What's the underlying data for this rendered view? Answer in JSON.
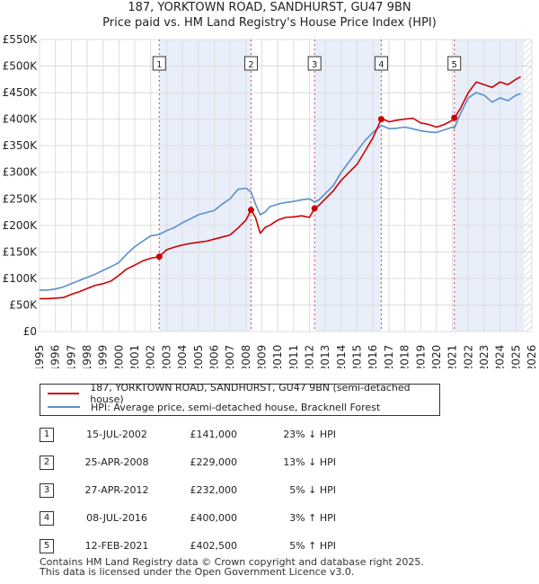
{
  "title_line1": "187, YORKTOWN ROAD, SANDHURST, GU47 9BN",
  "title_line2": "Price paid vs. HM Land Registry's House Price Index (HPI)",
  "legend": {
    "property": "187, YORKTOWN ROAD, SANDHURST, GU47 9BN (semi-detached house)",
    "hpi": "HPI: Average price, semi-detached house, Bracknell Forest"
  },
  "colors": {
    "property": "#cc0000",
    "hpi": "#5b8fc9",
    "shade": "#e8eefa",
    "grid": "#dddddd"
  },
  "sales": [
    {
      "num": "1",
      "date": "15-JUL-2002",
      "price": "£141,000",
      "diff": "23% ↓ HPI"
    },
    {
      "num": "2",
      "date": "25-APR-2008",
      "price": "£229,000",
      "diff": "13% ↓ HPI"
    },
    {
      "num": "3",
      "date": "27-APR-2012",
      "price": "£232,000",
      "diff": "5% ↓ HPI"
    },
    {
      "num": "4",
      "date": "08-JUL-2016",
      "price": "£400,000",
      "diff": "3% ↑ HPI"
    },
    {
      "num": "5",
      "date": "12-FEB-2021",
      "price": "£402,500",
      "diff": "5% ↑ HPI"
    }
  ],
  "footer_line1": "Contains HM Land Registry data © Crown copyright and database right 2025.",
  "footer_line2": "This data is licensed under the Open Government Licence v3.0.",
  "chart_data": {
    "type": "line",
    "title": "187, YORKTOWN ROAD, SANDHURST, GU47 9BN",
    "subtitle": "Price paid vs. HM Land Registry's House Price Index (HPI)",
    "xlim": [
      1995,
      2026
    ],
    "ylim": [
      0,
      550000
    ],
    "xticks": [
      1995,
      1996,
      1997,
      1998,
      1999,
      2000,
      2001,
      2002,
      2003,
      2004,
      2005,
      2006,
      2007,
      2008,
      2009,
      2010,
      2011,
      2012,
      2013,
      2014,
      2015,
      2016,
      2017,
      2018,
      2019,
      2020,
      2021,
      2022,
      2023,
      2024,
      2025,
      2026
    ],
    "yticks": [
      0,
      50000,
      100000,
      150000,
      200000,
      250000,
      300000,
      350000,
      400000,
      450000,
      500000,
      550000
    ],
    "ytick_labels": [
      "£0",
      "£50K",
      "£100K",
      "£150K",
      "£200K",
      "£250K",
      "£300K",
      "£350K",
      "£400K",
      "£450K",
      "£500K",
      "£550K"
    ],
    "grid": true,
    "shaded_ranges": [
      [
        2002.54,
        2008.32
      ],
      [
        2012.32,
        2016.52
      ],
      [
        2021.12,
        2025.5
      ]
    ],
    "hatched_from": 2025.5,
    "series": [
      {
        "name": "187, YORKTOWN ROAD, SANDHURST, GU47 9BN (semi-detached house)",
        "x": [
          1995,
          1995.5,
          1996,
          1996.5,
          1997,
          1997.5,
          1998,
          1998.5,
          1999,
          1999.5,
          2000,
          2000.5,
          2001,
          2001.5,
          2002,
          2002.54,
          2003,
          2003.5,
          2004,
          2004.5,
          2005,
          2005.5,
          2006,
          2006.5,
          2007,
          2007.5,
          2008,
          2008.32,
          2008.6,
          2008.9,
          2009.2,
          2009.5,
          2010,
          2010.5,
          2011,
          2011.5,
          2012,
          2012.32,
          2012.6,
          2013,
          2013.5,
          2014,
          2014.5,
          2015,
          2015.5,
          2016,
          2016.52,
          2016.8,
          2017,
          2017.5,
          2018,
          2018.5,
          2019,
          2019.5,
          2020,
          2020.5,
          2021,
          2021.12,
          2021.5,
          2022,
          2022.5,
          2023,
          2023.5,
          2024,
          2024.5,
          2025,
          2025.3
        ],
        "values": [
          62000,
          62000,
          63000,
          64000,
          70000,
          75000,
          81000,
          87000,
          90000,
          95000,
          106000,
          118000,
          125000,
          133000,
          138000,
          141000,
          154000,
          159000,
          163000,
          166000,
          168000,
          170000,
          174000,
          178000,
          182000,
          195000,
          210000,
          229000,
          215000,
          185000,
          196000,
          200000,
          210000,
          215000,
          216000,
          218000,
          215000,
          232000,
          238000,
          250000,
          265000,
          285000,
          300000,
          315000,
          340000,
          365000,
          400000,
          398000,
          395000,
          398000,
          400000,
          402000,
          393000,
          390000,
          385000,
          390000,
          398000,
          402500,
          420000,
          450000,
          470000,
          465000,
          460000,
          470000,
          465000,
          475000,
          480000
        ]
      },
      {
        "name": "HPI: Average price, semi-detached house, Bracknell Forest",
        "x": [
          1995,
          1995.5,
          1996,
          1996.5,
          1997,
          1997.5,
          1998,
          1998.5,
          1999,
          1999.5,
          2000,
          2000.5,
          2001,
          2001.5,
          2002,
          2002.54,
          2003,
          2003.5,
          2004,
          2004.5,
          2005,
          2005.5,
          2006,
          2006.5,
          2007,
          2007.5,
          2008,
          2008.32,
          2008.6,
          2008.9,
          2009.2,
          2009.5,
          2010,
          2010.5,
          2011,
          2011.5,
          2012,
          2012.32,
          2012.6,
          2013,
          2013.5,
          2014,
          2014.5,
          2015,
          2015.5,
          2016,
          2016.52,
          2016.8,
          2017,
          2017.5,
          2018,
          2018.5,
          2019,
          2019.5,
          2020,
          2020.5,
          2021,
          2021.12,
          2021.5,
          2022,
          2022.5,
          2023,
          2023.5,
          2024,
          2024.5,
          2025,
          2025.3
        ],
        "values": [
          78000,
          78000,
          80000,
          84000,
          90000,
          96000,
          102000,
          108000,
          115000,
          122000,
          130000,
          146000,
          160000,
          170000,
          180000,
          183000,
          190000,
          196000,
          205000,
          212000,
          220000,
          224000,
          228000,
          240000,
          250000,
          268000,
          270000,
          263000,
          240000,
          220000,
          225000,
          235000,
          240000,
          243000,
          245000,
          248000,
          250000,
          244000,
          248000,
          260000,
          275000,
          300000,
          320000,
          340000,
          360000,
          375000,
          388000,
          385000,
          382000,
          383000,
          385000,
          382000,
          378000,
          376000,
          375000,
          380000,
          385000,
          383000,
          410000,
          440000,
          450000,
          445000,
          432000,
          440000,
          435000,
          445000,
          448000
        ]
      }
    ],
    "markers": [
      {
        "label": "1",
        "x": 2002.54,
        "y": 141000
      },
      {
        "label": "2",
        "x": 2008.32,
        "y": 229000
      },
      {
        "label": "3",
        "x": 2012.32,
        "y": 232000
      },
      {
        "label": "4",
        "x": 2016.52,
        "y": 400000
      },
      {
        "label": "5",
        "x": 2021.12,
        "y": 402500
      }
    ],
    "xlabel": "",
    "ylabel": ""
  }
}
